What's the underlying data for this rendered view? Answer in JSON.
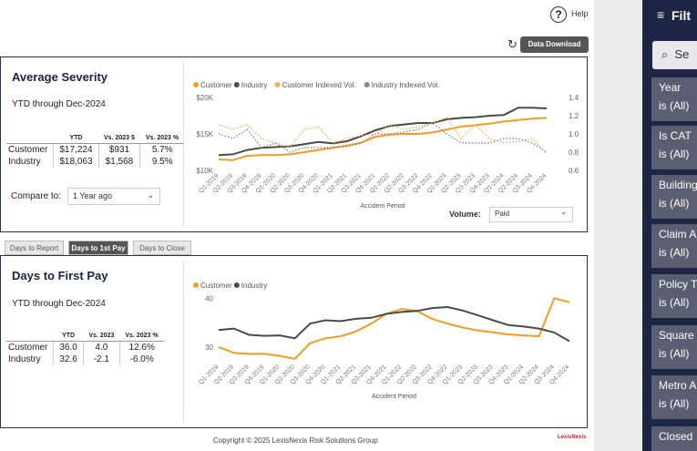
{
  "header": {
    "help": "Help",
    "download_button": "Data Download"
  },
  "severity_panel": {
    "title": "Average Severity",
    "subtitle": "YTD through Dec-2024",
    "table": {
      "columns": [
        "YTD",
        "Vs. 2023 $",
        "Vs. 2023 %"
      ],
      "rows": [
        [
          "Customer",
          "$17,224",
          "$931",
          "5.7%"
        ],
        [
          "Industry",
          "$18,063",
          "$1,568",
          "9.5%"
        ]
      ]
    },
    "compare_label": "Compare to:",
    "compare_value": "1 Year ago",
    "volume_label": "Volume:",
    "volume_value": "Paid"
  },
  "tabs": [
    "Days to Report",
    "Days to 1st Pay",
    "Days to Close"
  ],
  "pay_panel": {
    "title": "Days to First Pay",
    "subtitle": "YTD through Dec-2024",
    "table": {
      "columns": [
        "YTD",
        "Vs. 2023",
        "Vs. 2023 %"
      ],
      "rows": [
        [
          "Customer",
          "36.0",
          "4.0",
          "12.6%"
        ],
        [
          "Industry",
          "32.6",
          "-2.1",
          "-6.0%"
        ]
      ]
    }
  },
  "chart_data": [
    {
      "type": "line",
      "x_label": "Accident Period",
      "legend": "top-left",
      "categories": [
        "Q1-2019",
        "Q2-2019",
        "Q3-2019",
        "Q4-2019",
        "Q1-2020",
        "Q2-2020",
        "Q3-2020",
        "Q4-2020",
        "Q1-2021",
        "Q2-2021",
        "Q3-2021",
        "Q4-2021",
        "Q1-2022",
        "Q2-2022",
        "Q3-2022",
        "Q4-2022",
        "Q1-2023",
        "Q2-2023",
        "Q3-2023",
        "Q4-2023",
        "Q1-2024",
        "Q2-2024",
        "Q3-2024",
        "Q4-2024"
      ],
      "ylim": [
        10000,
        20000
      ],
      "yticks": [
        {
          "value": 10000,
          "label": "$10K"
        },
        {
          "value": 15000,
          "label": "$15K"
        },
        {
          "value": 20000,
          "label": "$20K"
        }
      ],
      "y2lim": [
        0.6,
        1.4
      ],
      "y2ticks": [
        0.6,
        0.8,
        {
          "value": 1,
          "label": "1.0"
        },
        1.2,
        1.4
      ],
      "series": [
        {
          "name": "Customer",
          "color": "#f39c1f",
          "values": [
            11500,
            11400,
            12000,
            12100,
            12100,
            12200,
            12500,
            12800,
            13100,
            13400,
            13800,
            14600,
            14900,
            15000,
            15000,
            15200,
            15600,
            16000,
            16200,
            16400,
            16700,
            16900,
            17100,
            17200
          ]
        },
        {
          "name": "Industry",
          "color": "#4a4a4a",
          "values": [
            12100,
            12200,
            12800,
            13100,
            13200,
            13300,
            13600,
            13900,
            13700,
            14000,
            14700,
            15500,
            16100,
            16300,
            16500,
            16500,
            17000,
            17200,
            17300,
            17500,
            17600,
            18600,
            18600,
            18500
          ]
        },
        {
          "name": "Customer Indexed Vol.",
          "color": "#f5b060",
          "axis": "y2",
          "dashed": true,
          "values": [
            1.1,
            1.05,
            1.1,
            0.95,
            0.9,
            0.85,
            1.05,
            1.08,
            0.9,
            0.95,
            0.98,
            1.0,
            1.1,
            1.05,
            1.08,
            1.12,
            1.18,
            0.95,
            1.1,
            0.95,
            0.9,
            0.92,
            0.95,
            0.78
          ]
        },
        {
          "name": "Industry Indexed Vol.",
          "color": "#8a8a8a",
          "axis": "y2",
          "dashed": true,
          "values": [
            1.0,
            0.95,
            1.05,
            0.85,
            0.9,
            0.8,
            0.85,
            0.85,
            0.85,
            0.86,
            0.9,
            1.0,
            1.0,
            1.02,
            1.05,
            1.12,
            1.0,
            0.9,
            0.9,
            0.9,
            0.95,
            0.95,
            0.9,
            0.8
          ]
        }
      ]
    },
    {
      "type": "line",
      "x_label": "Accident Period",
      "legend": "top-left",
      "categories": [
        "Q1-2019",
        "Q2-2019",
        "Q3-2019",
        "Q4-2019",
        "Q1-2020",
        "Q2-2020",
        "Q3-2020",
        "Q4-2020",
        "Q1-2021",
        "Q2-2021",
        "Q3-2021",
        "Q4-2021",
        "Q1-2022",
        "Q2-2022",
        "Q3-2022",
        "Q4-2022",
        "Q1-2023",
        "Q2-2023",
        "Q3-2023",
        "Q4-2023",
        "Q1-2024",
        "Q2-2024",
        "Q3-2024",
        "Q4-2024"
      ],
      "ylim": [
        27,
        41
      ],
      "yticks": [
        30,
        40
      ],
      "series": [
        {
          "name": "Customer",
          "color": "#f39c1f",
          "values": [
            30,
            28.8,
            28.6,
            28.6,
            28.2,
            27.6,
            30.8,
            31.8,
            32.2,
            33.2,
            34.8,
            36.8,
            37.8,
            37.4,
            35.8,
            34.8,
            34.0,
            33.4,
            33.0,
            32.6,
            32.4,
            32.2,
            40.0,
            39.2
          ]
        },
        {
          "name": "Industry",
          "color": "#4a4a4a",
          "values": [
            33.5,
            33.8,
            32.5,
            32.3,
            32.4,
            31.8,
            34.8,
            35.5,
            35.3,
            35.8,
            36.0,
            36.8,
            37.2,
            37.4,
            38.0,
            38.2,
            37.5,
            36.5,
            35.5,
            34.5,
            34.2,
            33.8,
            33.0,
            31.2
          ]
        }
      ]
    }
  ],
  "filters": {
    "title": "Filt",
    "search": "Se",
    "items": [
      {
        "name": "Year",
        "value": "is (All)"
      },
      {
        "name": "Is CAT",
        "value": "is (All)"
      },
      {
        "name": "Building",
        "value": "is (All)"
      },
      {
        "name": "Claim A",
        "value": "is (All)"
      },
      {
        "name": "Policy T",
        "value": "is (All)"
      },
      {
        "name": "Square",
        "value": "is (All)"
      },
      {
        "name": "Metro A",
        "value": "is (All)"
      },
      {
        "name": "Closed",
        "value": ""
      }
    ]
  },
  "footer": "Copyright © 2025 LexisNexis Risk Solutions Group",
  "logo": "LexisNexis"
}
